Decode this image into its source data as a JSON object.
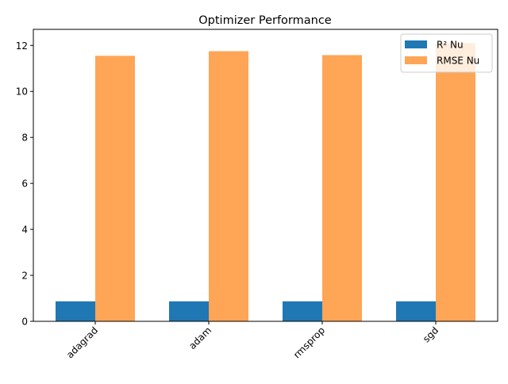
{
  "chart_data": {
    "type": "bar",
    "title": "Optimizer Performance",
    "xlabel": "",
    "ylabel": "",
    "categories": [
      "adagrad",
      "adam",
      "rmsprop",
      "sgd"
    ],
    "series": [
      {
        "name": "R² Nu",
        "color": "#1f77b4",
        "values": [
          0.87,
          0.87,
          0.87,
          0.87
        ]
      },
      {
        "name": "RMSE Nu",
        "color": "#ffa556",
        "values": [
          11.55,
          11.75,
          11.58,
          12.1
        ]
      }
    ],
    "ylim": [
      0,
      12.7
    ],
    "yticks": [
      0,
      2,
      4,
      6,
      8,
      10,
      12
    ],
    "legend_position": "top-right",
    "grid": false
  }
}
